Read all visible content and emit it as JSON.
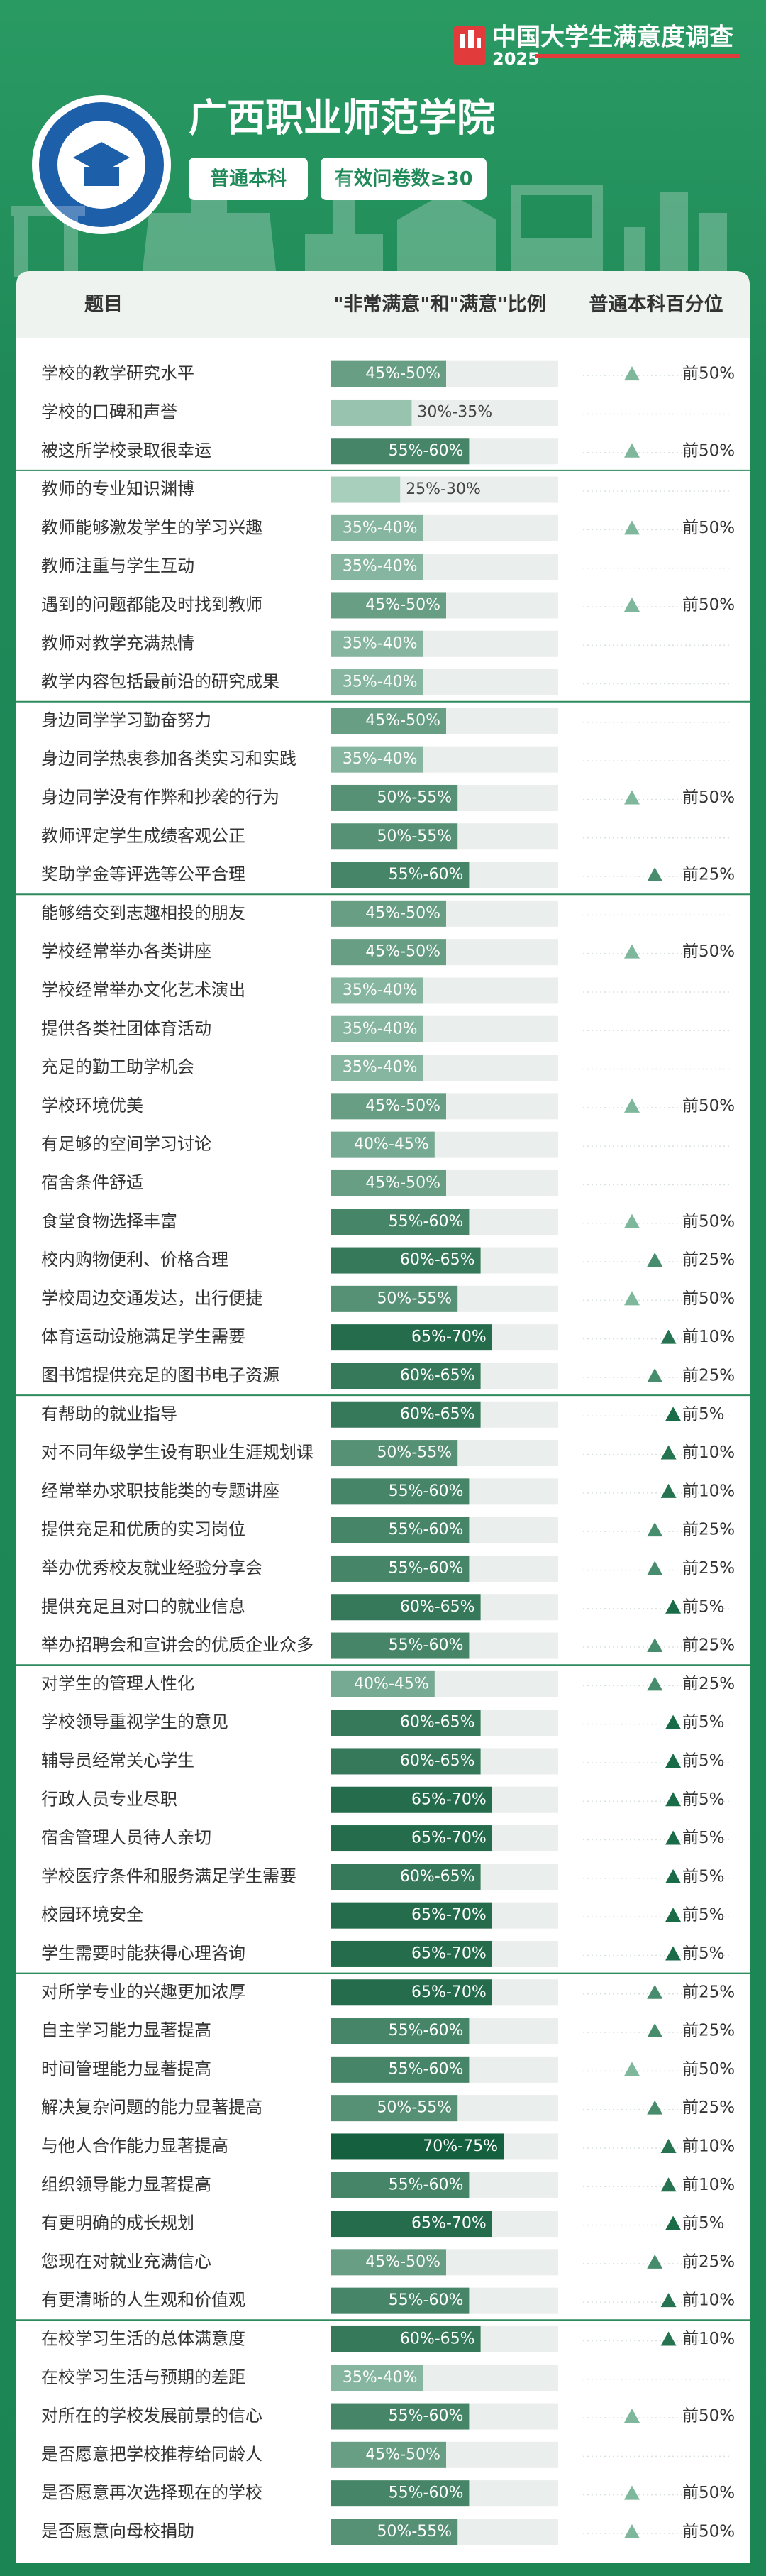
{
  "badge": {
    "title": "中国大学生满意度调查",
    "year": "2025"
  },
  "school": {
    "name": "广西职业师范学院",
    "tags": [
      "普通本科",
      "有效问卷数≥30"
    ]
  },
  "columns": [
    "题目",
    "\"非常满意\"和\"满意\"比例",
    "普通本科百分位"
  ],
  "sections": [
    [
      {
        "item": "学校的教学研究水平",
        "ratio": "45%-50%",
        "percentile": "前50%"
      },
      {
        "item": "学校的口碑和声誉",
        "ratio": "30%-35%"
      },
      {
        "item": "被这所学校录取很幸运",
        "ratio": "55%-60%",
        "percentile": "前50%"
      }
    ],
    [
      {
        "item": "教师的专业知识渊博",
        "ratio": "25%-30%"
      },
      {
        "item": "教师能够激发学生的学习兴趣",
        "ratio": "35%-40%",
        "percentile": "前50%"
      },
      {
        "item": "教师注重与学生互动",
        "ratio": "35%-40%"
      },
      {
        "item": "遇到的问题都能及时找到教师",
        "ratio": "45%-50%",
        "percentile": "前50%"
      },
      {
        "item": "教师对教学充满热情",
        "ratio": "35%-40%"
      },
      {
        "item": "教学内容包括最前沿的研究成果",
        "ratio": "35%-40%"
      }
    ],
    [
      {
        "item": "身边同学学习勤奋努力",
        "ratio": "45%-50%"
      },
      {
        "item": "身边同学热衷参加各类实习和实践",
        "ratio": "35%-40%"
      },
      {
        "item": "身边同学没有作弊和抄袭的行为",
        "ratio": "50%-55%",
        "percentile": "前50%"
      },
      {
        "item": "教师评定学生成绩客观公正",
        "ratio": "50%-55%"
      },
      {
        "item": "奖助学金等评选等公平合理",
        "ratio": "55%-60%",
        "percentile": "前25%"
      }
    ],
    [
      {
        "item": "能够结交到志趣相投的朋友",
        "ratio": "45%-50%"
      },
      {
        "item": "学校经常举办各类讲座",
        "ratio": "45%-50%",
        "percentile": "前50%"
      },
      {
        "item": "学校经常举办文化艺术演出",
        "ratio": "35%-40%"
      },
      {
        "item": "提供各类社团体育活动",
        "ratio": "35%-40%"
      },
      {
        "item": "充足的勤工助学机会",
        "ratio": "35%-40%"
      },
      {
        "item": "学校环境优美",
        "ratio": "45%-50%",
        "percentile": "前50%"
      },
      {
        "item": "有足够的空间学习讨论",
        "ratio": "40%-45%"
      },
      {
        "item": "宿舍条件舒适",
        "ratio": "45%-50%"
      },
      {
        "item": "食堂食物选择丰富",
        "ratio": "55%-60%",
        "percentile": "前50%"
      },
      {
        "item": "校内购物便利、价格合理",
        "ratio": "60%-65%",
        "percentile": "前25%"
      },
      {
        "item": "学校周边交通发达，出行便捷",
        "ratio": "50%-55%",
        "percentile": "前50%"
      },
      {
        "item": "体育运动设施满足学生需要",
        "ratio": "65%-70%",
        "percentile": "前10%"
      },
      {
        "item": "图书馆提供充足的图书电子资源",
        "ratio": "60%-65%",
        "percentile": "前25%"
      }
    ],
    [
      {
        "item": "有帮助的就业指导",
        "ratio": "60%-65%",
        "percentile": "前5%"
      },
      {
        "item": "对不同年级学生设有职业生涯规划课",
        "ratio": "50%-55%",
        "percentile": "前10%"
      },
      {
        "item": "经常举办求职技能类的专题讲座",
        "ratio": "55%-60%",
        "percentile": "前10%"
      },
      {
        "item": "提供充足和优质的实习岗位",
        "ratio": "55%-60%",
        "percentile": "前25%"
      },
      {
        "item": "举办优秀校友就业经验分享会",
        "ratio": "55%-60%",
        "percentile": "前25%"
      },
      {
        "item": "提供充足且对口的就业信息",
        "ratio": "60%-65%",
        "percentile": "前5%"
      },
      {
        "item": "举办招聘会和宣讲会的优质企业众多",
        "ratio": "55%-60%",
        "percentile": "前25%"
      }
    ],
    [
      {
        "item": "对学生的管理人性化",
        "ratio": "40%-45%",
        "percentile": "前25%"
      },
      {
        "item": "学校领导重视学生的意见",
        "ratio": "60%-65%",
        "percentile": "前5%"
      },
      {
        "item": "辅导员经常关心学生",
        "ratio": "60%-65%",
        "percentile": "前5%"
      },
      {
        "item": "行政人员专业尽职",
        "ratio": "65%-70%",
        "percentile": "前5%"
      },
      {
        "item": "宿舍管理人员待人亲切",
        "ratio": "65%-70%",
        "percentile": "前5%"
      },
      {
        "item": "学校医疗条件和服务满足学生需要",
        "ratio": "60%-65%",
        "percentile": "前5%"
      },
      {
        "item": "校园环境安全",
        "ratio": "65%-70%",
        "percentile": "前5%"
      },
      {
        "item": "学生需要时能获得心理咨询",
        "ratio": "65%-70%",
        "percentile": "前5%"
      }
    ],
    [
      {
        "item": "对所学专业的兴趣更加浓厚",
        "ratio": "65%-70%",
        "percentile": "前25%"
      },
      {
        "item": "自主学习能力显著提高",
        "ratio": "55%-60%",
        "percentile": "前25%"
      },
      {
        "item": "时间管理能力显著提高",
        "ratio": "55%-60%",
        "percentile": "前50%"
      },
      {
        "item": "解决复杂问题的能力显著提高",
        "ratio": "50%-55%",
        "percentile": "前25%"
      },
      {
        "item": "与他人合作能力显著提高",
        "ratio": "70%-75%",
        "percentile": "前10%"
      },
      {
        "item": "组织领导能力显著提高",
        "ratio": "55%-60%",
        "percentile": "前10%"
      },
      {
        "item": "有更明确的成长规划",
        "ratio": "65%-70%",
        "percentile": "前5%"
      },
      {
        "item": "您现在对就业充满信心",
        "ratio": "45%-50%",
        "percentile": "前25%"
      },
      {
        "item": "有更清晰的人生观和价值观",
        "ratio": "55%-60%",
        "percentile": "前10%"
      }
    ],
    [
      {
        "item": "在校学习生活的总体满意度",
        "ratio": "60%-65%",
        "percentile": "前10%"
      },
      {
        "item": "在校学习生活与预期的差距",
        "ratio": "35%-40%"
      },
      {
        "item": "对所在的学校发展前景的信心",
        "ratio": "55%-60%",
        "percentile": "前50%"
      },
      {
        "item": "是否愿意把学校推荐给同龄人",
        "ratio": "45%-50%"
      },
      {
        "item": "是否愿意再次选择现在的学校",
        "ratio": "55%-60%",
        "percentile": "前50%"
      },
      {
        "item": "是否愿意向母校捐助",
        "ratio": "50%-55%",
        "percentile": "前50%"
      }
    ]
  ]
}
